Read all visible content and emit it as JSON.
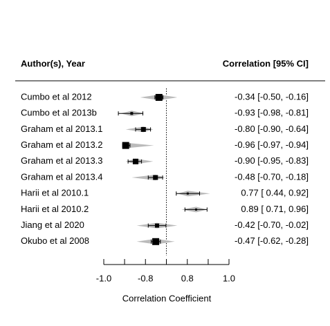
{
  "chart_data": {
    "type": "forest",
    "header_left": "Author(s), Year",
    "header_right": "Correlation [95% CI]",
    "xlabel": "Correlation Coefficient",
    "scale": "fisher-z",
    "categories": [
      "Cumbo et al 2012",
      "Cumbo et al 2013b",
      "Graham et al 2013.1",
      "Graham et al 2013.2",
      "Graham et al 2013.3",
      "Graham et al 2013.4",
      "Harii et al 2010.1",
      "Harii et al 2010.2",
      "Jiang et al 2020",
      "Okubo et al 2008"
    ],
    "values": [
      -0.34,
      -0.93,
      -0.8,
      -0.96,
      -0.9,
      -0.48,
      0.77,
      0.89,
      -0.42,
      -0.47
    ],
    "lower": [
      -0.5,
      -0.98,
      -0.9,
      -0.97,
      -0.95,
      -0.7,
      0.44,
      0.71,
      -0.7,
      -0.62
    ],
    "upper": [
      -0.16,
      -0.81,
      -0.64,
      -0.94,
      -0.83,
      -0.18,
      0.92,
      0.96,
      -0.02,
      -0.28
    ],
    "value_labels": [
      "-0.34 [-0.50, -0.16]",
      "-0.93 [-0.98, -0.81]",
      "-0.80 [-0.90, -0.64]",
      "-0.96 [-0.97, -0.94]",
      "-0.90 [-0.95, -0.83]",
      "-0.48 [-0.70, -0.18]",
      "0.77 [ 0.44,  0.92]",
      "0.89 [ 0.71,  0.96]",
      "-0.42 [-0.70, -0.02]",
      "-0.47 [-0.62, -0.28]"
    ],
    "weights": [
      10,
      4,
      7,
      10,
      8,
      7,
      3,
      3,
      6,
      10
    ],
    "diamond_lower": [
      -0.85,
      -0.975,
      -0.96,
      -0.955,
      -0.96,
      -0.93,
      0.48,
      0.62,
      -0.89,
      -0.89
    ],
    "diamond_upper": [
      0.48,
      -0.78,
      -0.56,
      -0.53,
      -0.56,
      -0.07,
      0.97,
      0.96,
      0.48,
      0.38
    ],
    "diamond_color": "#bbbbbb",
    "color": "#000000",
    "xlim": [
      -0.995,
      0.995
    ],
    "xticks": [
      -0.995,
      -0.964,
      -0.762,
      0,
      0.762,
      0.964,
      0.995
    ],
    "xtick_labels": [
      {
        "value": -0.995,
        "label": "-1.0"
      },
      {
        "value": -0.762,
        "label": "-0.8"
      },
      {
        "value": 0.762,
        "label": "0.8"
      },
      {
        "value": 0.995,
        "label": "1.0"
      }
    ],
    "refline": 0
  }
}
